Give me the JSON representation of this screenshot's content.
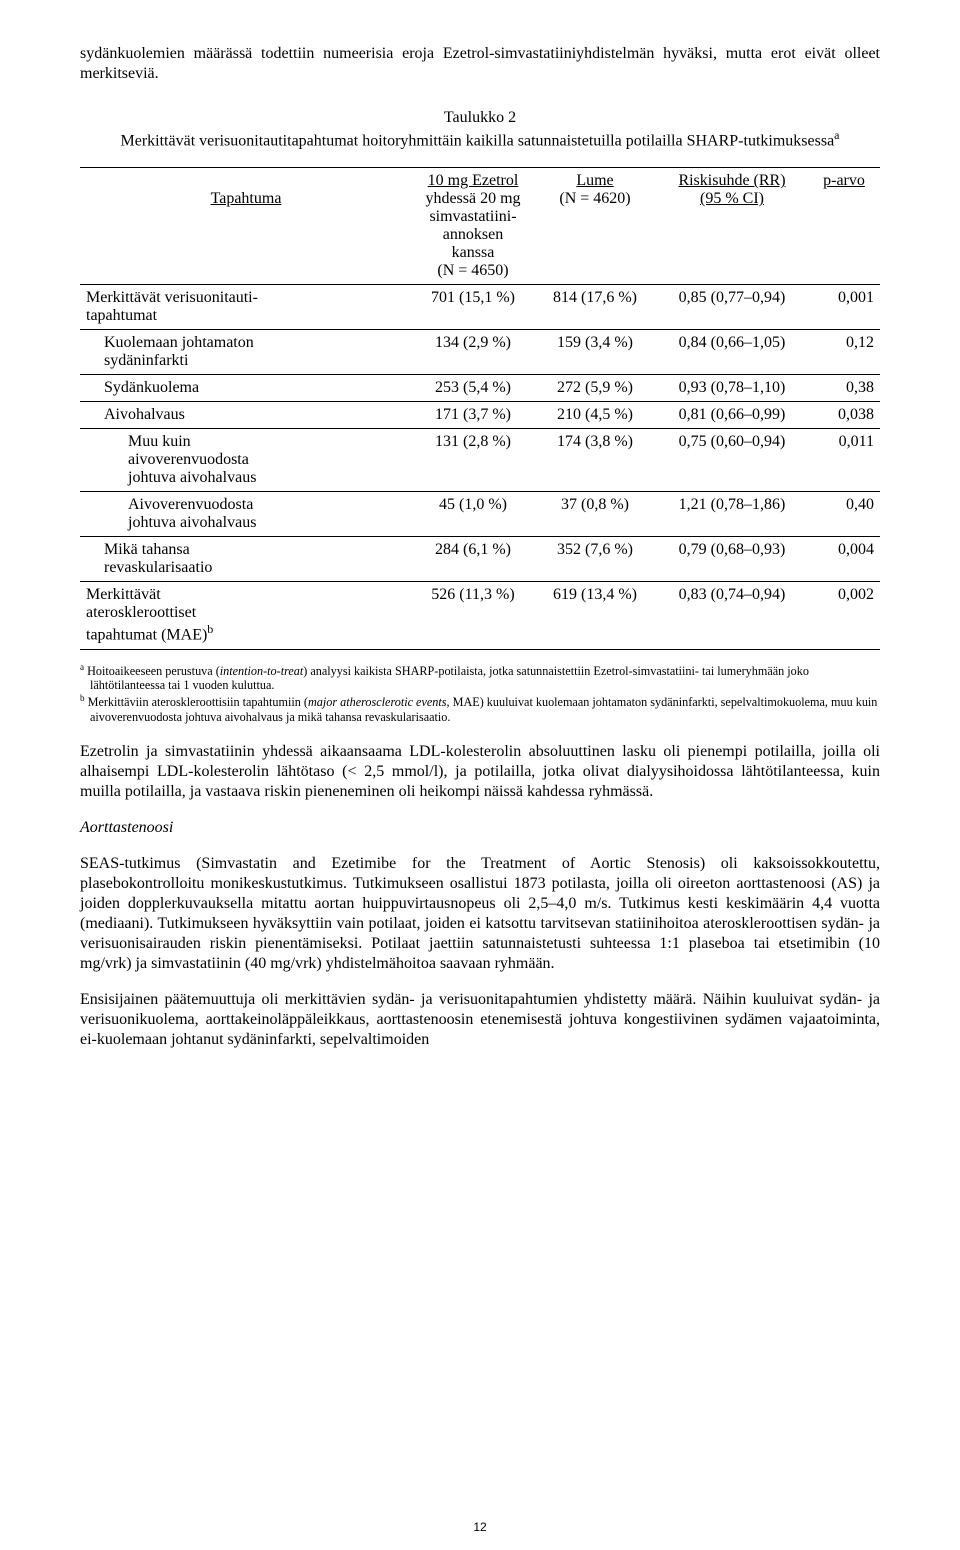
{
  "para1": "sydänkuolemien määrässä todettiin numeerisia eroja Ezetrol-simvastatiiniyhdistelmän hyväksi, mutta erot eivät olleet merkitseviä.",
  "tableCaptionLine1": "Taulukko 2",
  "tableCaptionLine2": "Merkittävät verisuonitautitapahtumat hoitoryhmittäin kaikilla satunnaistetuilla potilailla SHARP-tutkimuksessa",
  "tableCaptionSup": "a",
  "headers": {
    "event": "Tapahtuma",
    "arm1a": "10 mg Ezetrol",
    "arm1b": "yhdessä 20 mg",
    "arm1c": "simvastatiini-",
    "arm1d": "annoksen",
    "arm1e": "kanssa",
    "arm1f": "(N = 4650)",
    "arm2a": "Lume",
    "arm2b": "(N = 4620)",
    "rr1": "Riskisuhde (RR)",
    "rr2": "(95 % CI)",
    "p": "p-arvo"
  },
  "rows": [
    {
      "label": "Merkittävät verisuonitauti-tapahtumat",
      "labelTail": "tapahtumat",
      "labelHead": "Merkittävät verisuonitauti-",
      "indent": 0,
      "multi": true,
      "a": "701 (15,1 %)",
      "b": "814 (17,6 %)",
      "rr": "0,85 (0,77–0,94)",
      "p": "0,001"
    },
    {
      "label": "Kuolemaan johtamaton sydäninfarkti",
      "labelHead": "Kuolemaan johtamaton",
      "labelTail": "sydäninfarkti",
      "indent": 1,
      "multi": true,
      "a": "134 (2,9 %)",
      "b": "159 (3,4 %)",
      "rr": "0,84 (0,66–1,05)",
      "p": "0,12"
    },
    {
      "label": "Sydänkuolema",
      "indent": 1,
      "multi": false,
      "a": "253 (5,4 %)",
      "b": "272 (5,9 %)",
      "rr": "0,93 (0,78–1,10)",
      "p": "0,38"
    },
    {
      "label": "Aivohalvaus",
      "indent": 1,
      "multi": false,
      "a": "171 (3,7 %)",
      "b": "210 (4,5 %)",
      "rr": "0,81 (0,66–0,99)",
      "p": "0,038"
    },
    {
      "labelHead": "Muu kuin",
      "labelMid": "aivoverenvuodosta",
      "labelTail": "johtuva aivohalvaus",
      "indent": 2,
      "multi": 3,
      "a": "131 (2,8 %)",
      "b": "174 (3,8 %)",
      "rr": "0,75 (0,60–0,94)",
      "p": "0,011"
    },
    {
      "labelHead": "Aivoverenvuodosta",
      "labelTail": "johtuva aivohalvaus",
      "indent": 2,
      "multi": true,
      "a": "45 (1,0 %)",
      "b": "37 (0,8 %)",
      "rr": "1,21 (0,78–1,86)",
      "p": "0,40"
    },
    {
      "labelHead": "Mikä tahansa",
      "labelTail": "revaskularisaatio",
      "indent": 1,
      "multi": true,
      "a": "284 (6,1 %)",
      "b": "352 (7,6 %)",
      "rr": "0,79 (0,68–0,93)",
      "p": "0,004"
    },
    {
      "labelHead": "Merkittävät",
      "labelMid": "ateroskleroottiset",
      "labelTail": "tapahtumat (MAE)",
      "labelSup": "b",
      "indent": 0,
      "multi": 3,
      "a": "526 (11,3 %)",
      "b": "619 (13,4 %)",
      "rr": "0,83 (0,74–0,94)",
      "p": "0,002"
    }
  ],
  "footnoteA": "Hoitoaikeeseen perustuva (",
  "footnoteA_it": "intention-to-treat",
  "footnoteA_rest": ") analyysi kaikista SHARP-potilaista, jotka satunnaistettiin Ezetrol-simvastatiini- tai lumeryhmään joko lähtötilanteessa tai 1 vuoden kuluttua.",
  "footnoteB": "Merkittäviin ateroskleroottisiin tapahtumiin (",
  "footnoteB_it": "major atherosclerotic events",
  "footnoteB_rest": ", MAE) kuuluivat kuolemaan johtamaton sydäninfarkti, sepelvaltimokuolema, muu kuin aivoverenvuodosta johtuva aivohalvaus ja mikä tahansa revaskularisaatio.",
  "para2": "Ezetrolin ja simvastatiinin yhdessä aikaansaama LDL-kolesterolin absoluuttinen lasku oli pienempi potilailla, joilla oli alhaisempi LDL-kolesterolin lähtötaso (< 2,5 mmol/l), ja potilailla, jotka olivat dialyysihoidossa lähtötilanteessa, kuin muilla potilailla, ja vastaava riskin pieneneminen oli heikompi näissä kahdessa ryhmässä.",
  "heading1": "Aorttastenoosi",
  "para3": "SEAS-tutkimus (Simvastatin and Ezetimibe for the Treatment of Aortic Stenosis) oli kaksoissokkoutettu, plasebokontrolloitu monikeskustutkimus. Tutkimukseen osallistui 1873 potilasta, joilla oli oireeton aorttastenoosi (AS) ja joiden dopplerkuvauksella mitattu aortan huippuvirtausnopeus oli 2,5–4,0 m/s. Tutkimus kesti keskimäärin 4,4 vuotta (mediaani). Tutkimukseen hyväksyttiin vain potilaat, joiden ei katsottu tarvitsevan statiinihoitoa ateroskleroottisen sydän- ja verisuonisairauden riskin pienentämiseksi. Potilaat jaettiin satunnaistetusti suhteessa 1:1 plaseboa tai etsetimibin (10 mg/vrk) ja simvastatiinin (40 mg/vrk) yhdistelmähoitoa saavaan ryhmään.",
  "para4": "Ensisijainen päätemuuttuja oli merkittävien sydän- ja verisuonitapahtumien yhdistetty määrä. Näihin kuuluivat sydän- ja verisuonikuolema, aorttakeinoläppäleikkaus, aorttastenoosin etenemisestä johtuva kongestiivinen sydämen vajaatoiminta, ei-kuolemaan johtanut sydäninfarkti, sepelvaltimoiden",
  "pageNum": "12"
}
